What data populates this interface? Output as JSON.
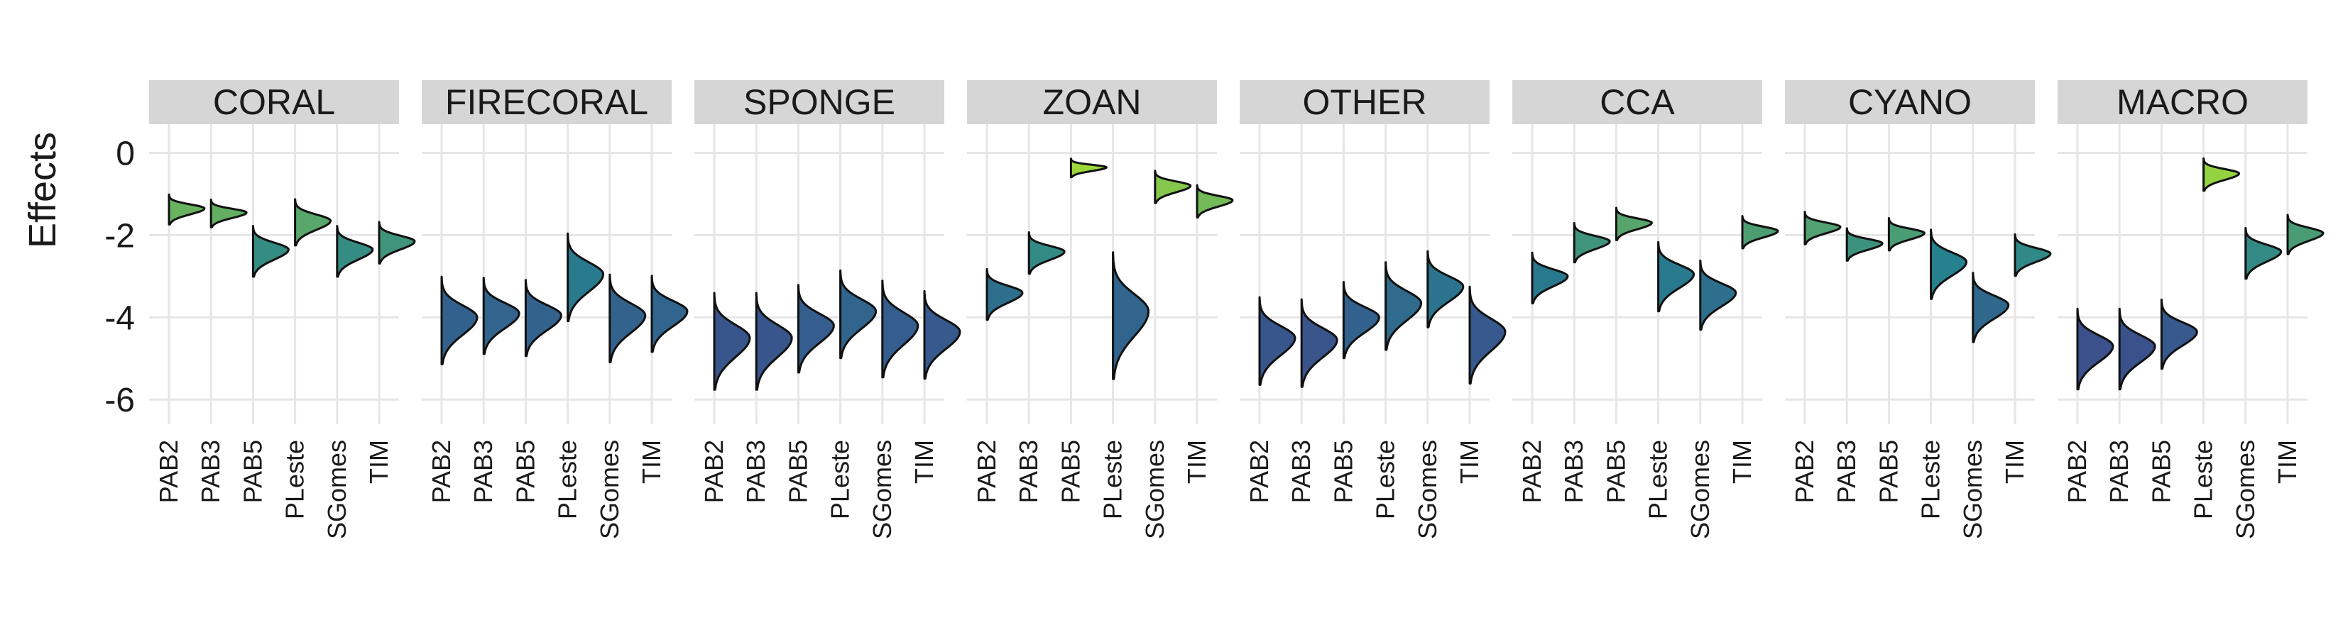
{
  "chart_data": {
    "type": "violin",
    "title": "",
    "ylabel": "Effects",
    "xlabel": "",
    "ylim": [
      -6.6,
      0.7
    ],
    "yticks": [
      0,
      -2,
      -4,
      -6
    ],
    "y_tick_labels": [
      "0",
      "-2",
      "-4",
      "-6"
    ],
    "grid": true,
    "categories": [
      "PAB2",
      "PAB3",
      "PAB5",
      "PLeste",
      "SGomes",
      "TIM"
    ],
    "colormap": {
      "low_value": -5.0,
      "high_value": -0.3,
      "low_color": "#3d4a8c",
      "mid_color": "#26818e",
      "high_color": "#9fda3a"
    },
    "panels": [
      {
        "name": "CORAL",
        "distributions": [
          {
            "mean": -1.35,
            "sd": 0.13
          },
          {
            "mean": -1.45,
            "sd": 0.12
          },
          {
            "mean": -2.35,
            "sd": 0.22
          },
          {
            "mean": -1.65,
            "sd": 0.2
          },
          {
            "mean": -2.35,
            "sd": 0.22
          },
          {
            "mean": -2.15,
            "sd": 0.18
          }
        ]
      },
      {
        "name": "FIRECORAL",
        "distributions": [
          {
            "mean": -4.0,
            "sd": 0.38
          },
          {
            "mean": -3.9,
            "sd": 0.33
          },
          {
            "mean": -3.95,
            "sd": 0.33
          },
          {
            "mean": -2.95,
            "sd": 0.38
          },
          {
            "mean": -3.95,
            "sd": 0.38
          },
          {
            "mean": -3.85,
            "sd": 0.33
          }
        ]
      },
      {
        "name": "SPONGE",
        "distributions": [
          {
            "mean": -4.5,
            "sd": 0.42
          },
          {
            "mean": -4.5,
            "sd": 0.42
          },
          {
            "mean": -4.2,
            "sd": 0.38
          },
          {
            "mean": -3.85,
            "sd": 0.38
          },
          {
            "mean": -4.2,
            "sd": 0.42
          },
          {
            "mean": -4.35,
            "sd": 0.38
          }
        ]
      },
      {
        "name": "ZOAN",
        "distributions": [
          {
            "mean": -3.4,
            "sd": 0.22
          },
          {
            "mean": -2.4,
            "sd": 0.18
          },
          {
            "mean": -0.35,
            "sd": 0.08
          },
          {
            "mean": -3.85,
            "sd": 0.55
          },
          {
            "mean": -0.8,
            "sd": 0.14
          },
          {
            "mean": -1.15,
            "sd": 0.14
          }
        ]
      },
      {
        "name": "OTHER",
        "distributions": [
          {
            "mean": -4.5,
            "sd": 0.38
          },
          {
            "mean": -4.55,
            "sd": 0.38
          },
          {
            "mean": -4.0,
            "sd": 0.33
          },
          {
            "mean": -3.65,
            "sd": 0.38
          },
          {
            "mean": -3.25,
            "sd": 0.33
          },
          {
            "mean": -4.35,
            "sd": 0.42
          }
        ]
      },
      {
        "name": "CCA",
        "distributions": [
          {
            "mean": -3.0,
            "sd": 0.22
          },
          {
            "mean": -2.15,
            "sd": 0.17
          },
          {
            "mean": -1.7,
            "sd": 0.14
          },
          {
            "mean": -2.95,
            "sd": 0.3
          },
          {
            "mean": -3.4,
            "sd": 0.3
          },
          {
            "mean": -1.9,
            "sd": 0.14
          }
        ]
      },
      {
        "name": "CYANO",
        "distributions": [
          {
            "mean": -1.8,
            "sd": 0.14
          },
          {
            "mean": -2.2,
            "sd": 0.14
          },
          {
            "mean": -1.95,
            "sd": 0.14
          },
          {
            "mean": -2.65,
            "sd": 0.3
          },
          {
            "mean": -3.7,
            "sd": 0.3
          },
          {
            "mean": -2.45,
            "sd": 0.18
          }
        ]
      },
      {
        "name": "MACRO",
        "distributions": [
          {
            "mean": -4.7,
            "sd": 0.35
          },
          {
            "mean": -4.7,
            "sd": 0.35
          },
          {
            "mean": -4.35,
            "sd": 0.3
          },
          {
            "mean": -0.5,
            "sd": 0.14
          },
          {
            "mean": -2.4,
            "sd": 0.22
          },
          {
            "mean": -1.95,
            "sd": 0.17
          }
        ]
      }
    ]
  }
}
